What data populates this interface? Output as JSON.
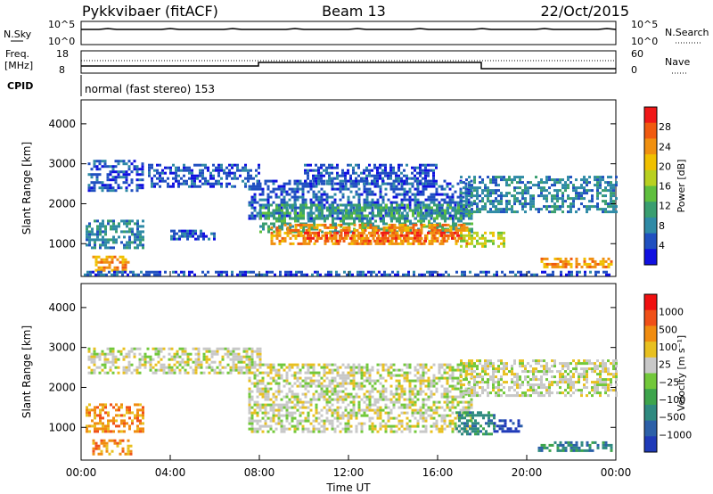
{
  "header": {
    "station": "Pykkvibaer (fitACF)",
    "beam": "Beam 13",
    "date": "22/Oct/2015"
  },
  "strip_panels": {
    "nsky_label": "N.Sky",
    "nsky_ticks": [
      "10^5",
      "10^0"
    ],
    "nsearch_label": "N.Search",
    "nsearch_ticks": [
      "10^5",
      "10^0"
    ],
    "freq_label": "Freq.",
    "freq_unit": "[MHz]",
    "freq_ticks": [
      "18",
      "8"
    ],
    "nave_label": "Nave",
    "nave_ticks": [
      "60",
      "0"
    ],
    "cpid_label": "CPID",
    "cpid_text": "normal (fast stereo) 153"
  },
  "chart_data": [
    {
      "type": "heatmap",
      "panel": "power",
      "ylabel": "Slant Range [km]",
      "y_ticks": [
        1000,
        2000,
        3000,
        4000
      ],
      "ylim": [
        180,
        4600
      ],
      "x_ticks": [
        "00:00",
        "04:00",
        "08:00",
        "12:00",
        "16:00",
        "20:00",
        "00:00"
      ],
      "xlim_hours": [
        0,
        24
      ],
      "colorbar": {
        "label": "Power [dB]",
        "ticks": [
          "4",
          "8",
          "12",
          "16",
          "20",
          "24",
          "28"
        ],
        "colors": [
          "#1010e0",
          "#2050c0",
          "#2f8aa6",
          "#3a9e70",
          "#5fbf3e",
          "#b8d020",
          "#f0c000",
          "#f09010",
          "#f05a10",
          "#f01818"
        ]
      },
      "regions": [
        {
          "t0": 0.3,
          "t1": 2.8,
          "r0": 2350,
          "r1": 3100,
          "level": 1
        },
        {
          "t0": 0.2,
          "t1": 2.8,
          "r0": 900,
          "r1": 1600,
          "level": 2
        },
        {
          "t0": 0.5,
          "t1": 2.2,
          "r0": 350,
          "r1": 700,
          "level": 7
        },
        {
          "t0": 3.0,
          "t1": 8.0,
          "r0": 2400,
          "r1": 3000,
          "level": 1
        },
        {
          "t0": 4.0,
          "t1": 6.0,
          "r0": 1100,
          "r1": 1350,
          "level": 1
        },
        {
          "t0": 7.5,
          "t1": 17.5,
          "r0": 1600,
          "r1": 2600,
          "level": 1
        },
        {
          "t0": 8.0,
          "t1": 17.5,
          "r0": 1300,
          "r1": 2000,
          "level": 3
        },
        {
          "t0": 8.5,
          "t1": 17.5,
          "r0": 1000,
          "r1": 1500,
          "level": 7
        },
        {
          "t0": 10.0,
          "t1": 17.0,
          "r0": 1050,
          "r1": 1300,
          "level": 8
        },
        {
          "t0": 10.0,
          "t1": 16.0,
          "r0": 2500,
          "r1": 3000,
          "level": 1
        },
        {
          "t0": 17.0,
          "t1": 24.0,
          "r0": 1800,
          "r1": 2700,
          "level": 2
        },
        {
          "t0": 17.0,
          "t1": 19.0,
          "r0": 900,
          "r1": 1300,
          "level": 5
        },
        {
          "t0": 20.5,
          "t1": 23.8,
          "r0": 400,
          "r1": 650,
          "level": 7
        },
        {
          "t0": 0.0,
          "t1": 24.0,
          "r0": 200,
          "r1": 320,
          "level": 1
        }
      ]
    },
    {
      "type": "heatmap",
      "panel": "velocity",
      "ylabel": "Slant Range [km]",
      "y_ticks": [
        1000,
        2000,
        3000,
        4000
      ],
      "ylim": [
        180,
        4600
      ],
      "x_ticks": [
        "00:00",
        "04:00",
        "08:00",
        "12:00",
        "16:00",
        "20:00",
        "00:00"
      ],
      "xlabel": "Time UT",
      "xlim_hours": [
        0,
        24
      ],
      "colorbar": {
        "label": "Velocity [m s⁻¹]",
        "ticks": [
          "1000",
          "500",
          "100",
          "25",
          "−25",
          "−100",
          "−500",
          "−1000"
        ],
        "colors": [
          "#1f3ab8",
          "#2c60a8",
          "#2f8a80",
          "#3da44c",
          "#72c83a",
          "#c8c8c8",
          "#e8c020",
          "#f08c10",
          "#f05018",
          "#f01010"
        ]
      },
      "regions": [
        {
          "t0": 0.3,
          "t1": 8.0,
          "r0": 2350,
          "r1": 3000,
          "level": 5
        },
        {
          "t0": 0.2,
          "t1": 2.8,
          "r0": 900,
          "r1": 1600,
          "level": 7
        },
        {
          "t0": 0.5,
          "t1": 2.2,
          "r0": 350,
          "r1": 700,
          "level": 7
        },
        {
          "t0": 7.5,
          "t1": 17.5,
          "r0": 900,
          "r1": 2600,
          "level": 5
        },
        {
          "t0": 17.0,
          "t1": 24.0,
          "r0": 1800,
          "r1": 2700,
          "level": 5
        },
        {
          "t0": 16.8,
          "t1": 18.5,
          "r0": 800,
          "r1": 1400,
          "level": 2
        },
        {
          "t0": 18.5,
          "t1": 19.8,
          "r0": 900,
          "r1": 1200,
          "level": 0
        },
        {
          "t0": 20.5,
          "t1": 23.8,
          "r0": 400,
          "r1": 650,
          "level": 2
        }
      ]
    }
  ]
}
